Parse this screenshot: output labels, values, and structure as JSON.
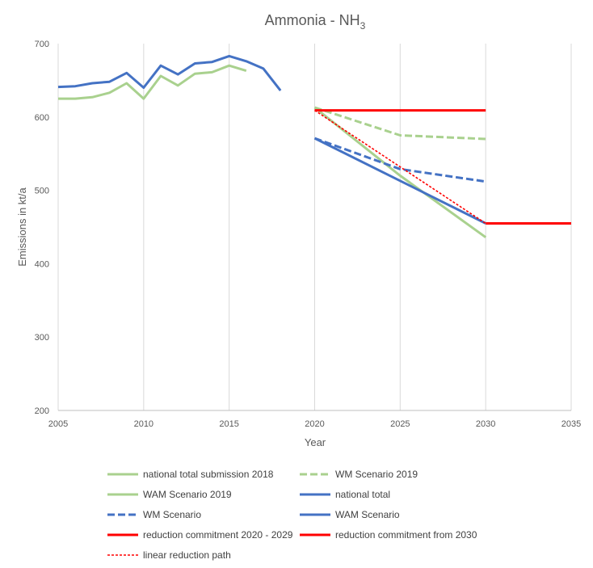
{
  "chart_data": {
    "type": "line",
    "title": "Ammonia - NH",
    "title_sub": "3",
    "xlabel": "Year",
    "ylabel": "Emissions in kt/a",
    "xlim": [
      2005,
      2035
    ],
    "ylim": [
      200,
      700
    ],
    "x_ticks": [
      2005,
      2010,
      2015,
      2020,
      2025,
      2030,
      2035
    ],
    "y_ticks": [
      200,
      300,
      400,
      500,
      600,
      700
    ],
    "grid": "vertical",
    "legend_position": "bottom",
    "series": [
      {
        "name": "national total submission 2018",
        "color": "#a9d18e",
        "dash": "solid",
        "x": [
          2005,
          2006,
          2007,
          2008,
          2009,
          2010,
          2011,
          2012,
          2013,
          2014,
          2015,
          2016
        ],
        "y": [
          625,
          625,
          627,
          633,
          646,
          625,
          656,
          643,
          659,
          661,
          670,
          663
        ]
      },
      {
        "name": "WM Scenario 2019",
        "color": "#a9d18e",
        "dash": "dash",
        "x": [
          2020,
          2025,
          2030
        ],
        "y": [
          613,
          575,
          570
        ]
      },
      {
        "name": "WAM Scenario 2019",
        "color": "#a9d18e",
        "dash": "solid",
        "x": [
          2020,
          2025,
          2030
        ],
        "y": [
          613,
          520,
          436
        ]
      },
      {
        "name": "national total",
        "color": "#4472c4",
        "dash": "solid",
        "x": [
          2005,
          2006,
          2007,
          2008,
          2009,
          2010,
          2011,
          2012,
          2013,
          2014,
          2015,
          2016,
          2017,
          2018
        ],
        "y": [
          641,
          642,
          646,
          648,
          660,
          640,
          670,
          658,
          673,
          675,
          683,
          676,
          666,
          636
        ]
      },
      {
        "name": "WM Scenario",
        "color": "#4472c4",
        "dash": "dash",
        "x": [
          2020,
          2025,
          2030
        ],
        "y": [
          571,
          529,
          512
        ]
      },
      {
        "name": "WAM Scenario",
        "color": "#4472c4",
        "dash": "solid",
        "x": [
          2020,
          2025,
          2030
        ],
        "y": [
          571,
          513,
          455
        ]
      },
      {
        "name": "reduction commitment 2020 - 2029",
        "color": "#ff0000",
        "dash": "solid",
        "x": [
          2020,
          2030
        ],
        "y": [
          609,
          609
        ]
      },
      {
        "name": "reduction commitment from 2030",
        "color": "#ff0000",
        "dash": "solid",
        "x": [
          2030,
          2035
        ],
        "y": [
          455,
          455
        ]
      },
      {
        "name": "linear reduction path",
        "color": "#ff0000",
        "dash": "dot",
        "x": [
          2020,
          2030
        ],
        "y": [
          609,
          455
        ]
      }
    ]
  }
}
